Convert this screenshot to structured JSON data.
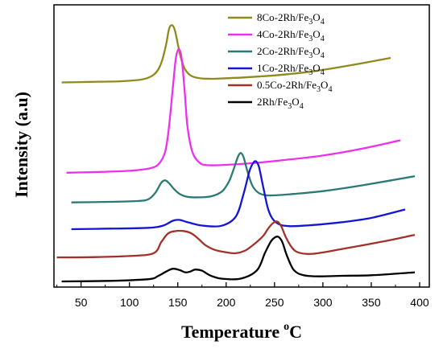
{
  "chart_data": {
    "type": "line",
    "xlabel": "Temperature",
    "xlabel_unit_sup": "o",
    "xlabel_unit": "C",
    "ylabel": "Intensity (a.u)",
    "xlim": [
      22,
      410
    ],
    "xticks": [
      50,
      100,
      150,
      200,
      250,
      300,
      350,
      400
    ],
    "y_axis_tick_labels": false,
    "grid": false,
    "legend_position": "top-right",
    "series": [
      {
        "name": "8Co-2Rh/Fe3O4",
        "legend_main": "8Co-2Rh/Fe",
        "legend_sub1": "3",
        "legend_mid": "O",
        "legend_sub2": "4",
        "color": "#8f8a1e",
        "x": [
          30,
          60,
          90,
          110,
          118,
          125,
          130,
          134,
          138,
          141,
          144,
          147,
          150,
          153,
          157,
          162,
          168,
          175,
          185,
          200,
          220,
          250,
          280,
          310,
          340,
          370
        ],
        "y": [
          0.725,
          0.727,
          0.729,
          0.734,
          0.74,
          0.752,
          0.772,
          0.805,
          0.86,
          0.915,
          0.928,
          0.91,
          0.862,
          0.815,
          0.775,
          0.753,
          0.743,
          0.739,
          0.738,
          0.74,
          0.743,
          0.75,
          0.76,
          0.775,
          0.793,
          0.812
        ]
      },
      {
        "name": "4Co-2Rh/Fe3O4",
        "legend_main": "4Co-2Rh/Fe",
        "legend_sub1": "3",
        "legend_mid": "O",
        "legend_sub2": "4",
        "color": "#ef2fef",
        "x": [
          35,
          70,
          100,
          120,
          130,
          137,
          141,
          145,
          148,
          151,
          154,
          157,
          160,
          165,
          172,
          180,
          200,
          230,
          260,
          300,
          340,
          380
        ],
        "y": [
          0.405,
          0.408,
          0.412,
          0.42,
          0.435,
          0.48,
          0.57,
          0.71,
          0.81,
          0.843,
          0.81,
          0.7,
          0.57,
          0.48,
          0.442,
          0.432,
          0.433,
          0.44,
          0.45,
          0.466,
          0.49,
          0.52
        ]
      },
      {
        "name": "2Co-2Rh/Fe3O4",
        "legend_main": "2Co-2Rh/Fe",
        "legend_sub1": "3",
        "legend_mid": "O",
        "legend_sub2": "4",
        "color": "#2a7a73",
        "x": [
          40,
          80,
          110,
          120,
          127,
          133,
          137,
          141,
          146,
          152,
          160,
          172,
          185,
          196,
          203,
          208,
          212,
          215,
          218,
          222,
          227,
          233,
          240,
          250,
          270,
          300,
          340,
          395
        ],
        "y": [
          0.3,
          0.302,
          0.305,
          0.312,
          0.335,
          0.37,
          0.378,
          0.368,
          0.348,
          0.33,
          0.32,
          0.318,
          0.322,
          0.34,
          0.375,
          0.42,
          0.46,
          0.475,
          0.46,
          0.41,
          0.36,
          0.335,
          0.326,
          0.325,
          0.33,
          0.34,
          0.36,
          0.393
        ]
      },
      {
        "name": "1Co-2Rh/Fe3O4",
        "legend_main": "1Co-2Rh/Fe",
        "legend_sub1": "3",
        "legend_mid": "O",
        "legend_sub2": "4",
        "color": "#1515d6",
        "x": [
          40,
          80,
          120,
          135,
          145,
          152,
          160,
          175,
          195,
          210,
          218,
          224,
          228,
          231,
          234,
          238,
          244,
          252,
          265,
          290,
          320,
          350,
          385
        ],
        "y": [
          0.205,
          0.207,
          0.21,
          0.218,
          0.235,
          0.238,
          0.23,
          0.218,
          0.217,
          0.25,
          0.33,
          0.41,
          0.44,
          0.445,
          0.425,
          0.36,
          0.27,
          0.228,
          0.216,
          0.22,
          0.23,
          0.245,
          0.275
        ]
      },
      {
        "name": "0.5Co-2Rh/Fe3O4",
        "legend_main": "0.5Co-2Rh/Fe",
        "legend_sub1": "3",
        "legend_mid": "O",
        "legend_sub2": "4",
        "color": "#a1322a",
        "x": [
          25,
          60,
          100,
          125,
          133,
          140,
          147,
          155,
          163,
          170,
          178,
          188,
          200,
          210,
          220,
          230,
          238,
          244,
          249,
          253,
          257,
          262,
          268,
          275,
          290,
          320,
          360,
          395
        ],
        "y": [
          0.105,
          0.106,
          0.11,
          0.12,
          0.16,
          0.19,
          0.198,
          0.199,
          0.192,
          0.175,
          0.15,
          0.132,
          0.123,
          0.12,
          0.13,
          0.155,
          0.18,
          0.21,
          0.228,
          0.232,
          0.215,
          0.175,
          0.14,
          0.122,
          0.118,
          0.135,
          0.16,
          0.185
        ]
      },
      {
        "name": "2Rh/Fe3O4",
        "legend_main": "2Rh/Fe",
        "legend_sub1": "3",
        "legend_mid": "O",
        "legend_sub2": "4",
        "color": "#000000",
        "x": [
          30,
          80,
          120,
          130,
          138,
          145,
          152,
          158,
          163,
          168,
          175,
          183,
          195,
          215,
          232,
          240,
          246,
          250,
          254,
          258,
          263,
          270,
          280,
          295,
          320,
          350,
          395
        ],
        "y": [
          0.02,
          0.022,
          0.028,
          0.04,
          0.055,
          0.065,
          0.06,
          0.052,
          0.055,
          0.062,
          0.058,
          0.042,
          0.03,
          0.03,
          0.06,
          0.12,
          0.16,
          0.175,
          0.178,
          0.16,
          0.11,
          0.06,
          0.042,
          0.038,
          0.04,
          0.042,
          0.052
        ]
      }
    ]
  }
}
